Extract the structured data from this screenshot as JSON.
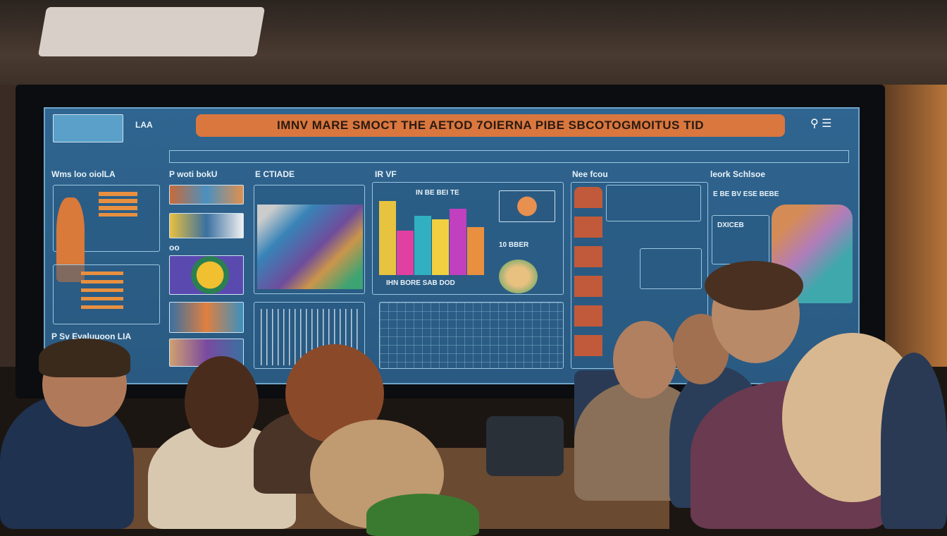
{
  "screen": {
    "top_left_label": "LAA",
    "title": "IMNV MARE SMOCT THE AETOD 7OIERNA PIBE SBCOTOGMOITUS TID",
    "panels": [
      {
        "heading": "Wms loo oiolLA",
        "footer": "P Sv Evaluuoon LIA"
      },
      {
        "heading": "P woti bokU",
        "sub": "oo"
      },
      {
        "heading": "E CTIADE"
      },
      {
        "heading": "IR VF",
        "sub_title": "IN BE BEI TE",
        "caption": "IHN BORE SAB DOD",
        "side_label": "10 BBER"
      },
      {
        "heading": "Nee fcou"
      },
      {
        "heading": "leork Schlsoe",
        "sub": "E BE BV ESE BEBE",
        "box_label": "DXICEB"
      }
    ]
  },
  "colors": {
    "screen": "#2d5f8a",
    "title_bar": "#d9773f",
    "bezel": "#0b0d10"
  },
  "chart_bar_colors": [
    "#e8c340",
    "#e040a0",
    "#30b0c0",
    "#f0d040",
    "#c040c0",
    "#e89040"
  ]
}
